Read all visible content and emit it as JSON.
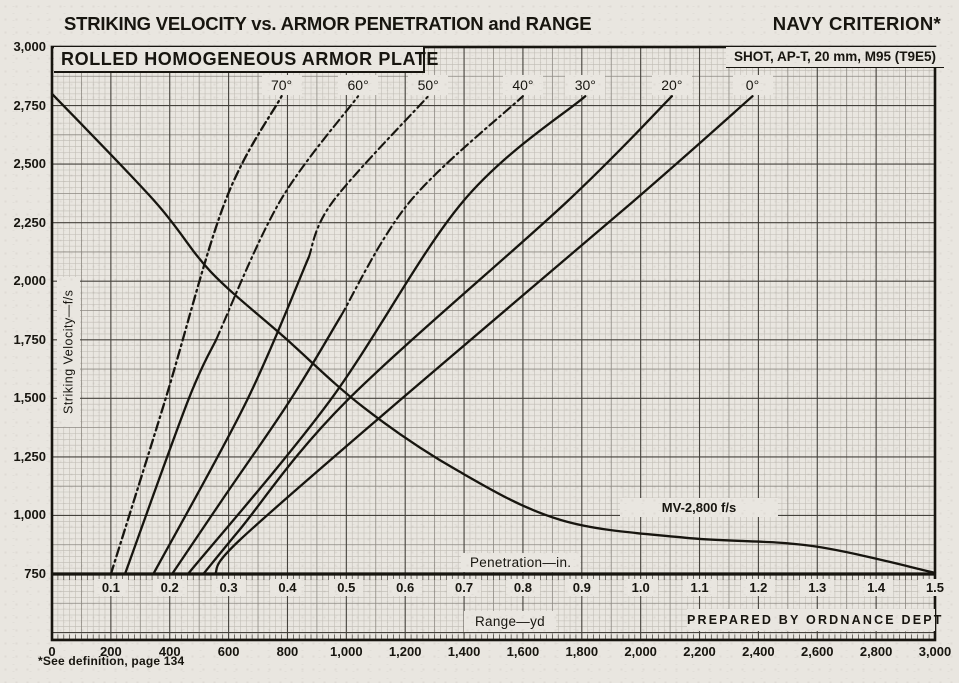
{
  "header": {
    "title": "STRIKING VELOCITY vs. ARMOR PENETRATION and RANGE",
    "title_right": "NAVY CRITERION*",
    "subtitle": "ROLLED HOMOGENEOUS ARMOR PLATE",
    "subtitle_right": "SHOT, AP-T, 20 mm, M95 (T9E5)"
  },
  "footer": {
    "prepared_by": "PREPARED BY ORDNANCE DEPT",
    "footnote": "*See definition, page 134"
  },
  "colors": {
    "ink": "#17150f",
    "paper": "#e9e6e0",
    "grid_fine": "#bfbbb3",
    "grid_mid": "#8d8982",
    "grid_heavy": "#45423c"
  },
  "chart_data": {
    "type": "line",
    "title": "STRIKING VELOCITY vs. ARMOR PENETRATION and RANGE — NAVY CRITERION",
    "grid": "fine engineering grid, 10 minor divisions per major division",
    "y_axis": {
      "label": "Striking Velocity—f/s",
      "min": 750,
      "max": 3000,
      "tick_step": 250,
      "tick_values": [
        750,
        1000,
        1250,
        1500,
        1750,
        2000,
        2250,
        2500,
        2750,
        3000
      ],
      "tick_labels": [
        "750",
        "1,000",
        "1,250",
        "1,500",
        "1,750",
        "2,000",
        "2,250",
        "2,500",
        "2,750",
        "3,000"
      ]
    },
    "x_axis_range": {
      "label": "Range—yd",
      "min": 0,
      "max": 3000,
      "tick_step": 200,
      "tick_values": [
        0,
        200,
        400,
        600,
        800,
        1000,
        1200,
        1400,
        1600,
        1800,
        2000,
        2200,
        2400,
        2600,
        2800,
        3000
      ],
      "tick_labels": [
        "0",
        "200",
        "400",
        "600",
        "800",
        "1,000",
        "1,200",
        "1,400",
        "1,600",
        "1,800",
        "2,000",
        "2,200",
        "2,400",
        "2,600",
        "2,800",
        "3,000"
      ]
    },
    "x_axis_penetration": {
      "label": "Penetration—in.",
      "min": 0,
      "max": 1.5,
      "tick_values": [
        0.1,
        0.2,
        0.3,
        0.4,
        0.5,
        0.6,
        0.7,
        0.8,
        0.9,
        1.0,
        1.1,
        1.2,
        1.3,
        1.4,
        1.5
      ],
      "tick_labels": [
        "0.1",
        "0.2",
        "0.3",
        "0.4",
        "0.5",
        "0.6",
        "0.7",
        "0.8",
        "0.9",
        "1.0",
        "1.1",
        "1.2",
        "1.3",
        "1.4",
        "1.5"
      ],
      "alignment_note": "penetration scale aligned so p inches sits at range 2000·p yd"
    },
    "obliquity_curves": [
      {
        "label": "70°",
        "dash_above_v": 700,
        "points_pen_v": [
          [
            0.1,
            750
          ],
          [
            0.192,
            1490
          ],
          [
            0.294,
            2340
          ],
          [
            0.39,
            2790
          ]
        ]
      },
      {
        "label": "60°",
        "dash_above_v": 1750,
        "points_pen_v": [
          [
            0.124,
            750
          ],
          [
            0.231,
            1490
          ],
          [
            0.387,
            2340
          ],
          [
            0.52,
            2790
          ]
        ]
      },
      {
        "label": "50°",
        "dash_above_v": 2100,
        "points_pen_v": [
          [
            0.172,
            750
          ],
          [
            0.331,
            1490
          ],
          [
            0.477,
            2340
          ],
          [
            0.639,
            2790
          ]
        ]
      },
      {
        "label": "40°",
        "dash_above_v": 1850,
        "points_pen_v": [
          [
            0.204,
            750
          ],
          [
            0.289,
            1066
          ],
          [
            0.404,
            1490
          ],
          [
            0.608,
            2340
          ],
          [
            0.8,
            2790
          ]
        ]
      },
      {
        "label": "30°",
        "dash_above_v": null,
        "points_pen_v": [
          [
            0.231,
            750
          ],
          [
            0.472,
            1490
          ],
          [
            0.698,
            2340
          ],
          [
            0.906,
            2790
          ]
        ]
      },
      {
        "label": "20°",
        "dash_above_v": null,
        "points_pen_v": [
          [
            0.257,
            750
          ],
          [
            0.319,
            940
          ],
          [
            0.501,
            1490
          ],
          [
            0.875,
            2340
          ],
          [
            1.053,
            2790
          ]
        ]
      },
      {
        "label": "0°",
        "dash_above_v": null,
        "points_pen_v": [
          [
            0.277,
            750
          ],
          [
            0.319,
            895
          ],
          [
            0.59,
            1490
          ],
          [
            0.987,
            2340
          ],
          [
            1.19,
            2790
          ]
        ]
      }
    ],
    "remaining_velocity_curve": {
      "label": "MV-2,800 f/s",
      "points_range_v": [
        [
          0,
          2800
        ],
        [
          350,
          2340
        ],
        [
          540,
          2040
        ],
        [
          790,
          1760
        ],
        [
          1060,
          1460
        ],
        [
          1380,
          1190
        ],
        [
          1730,
          980
        ],
        [
          2150,
          905
        ],
        [
          2580,
          870
        ],
        [
          3000,
          755
        ]
      ]
    },
    "legend_position": "labels in white boxes along top of plot and beside curves"
  }
}
